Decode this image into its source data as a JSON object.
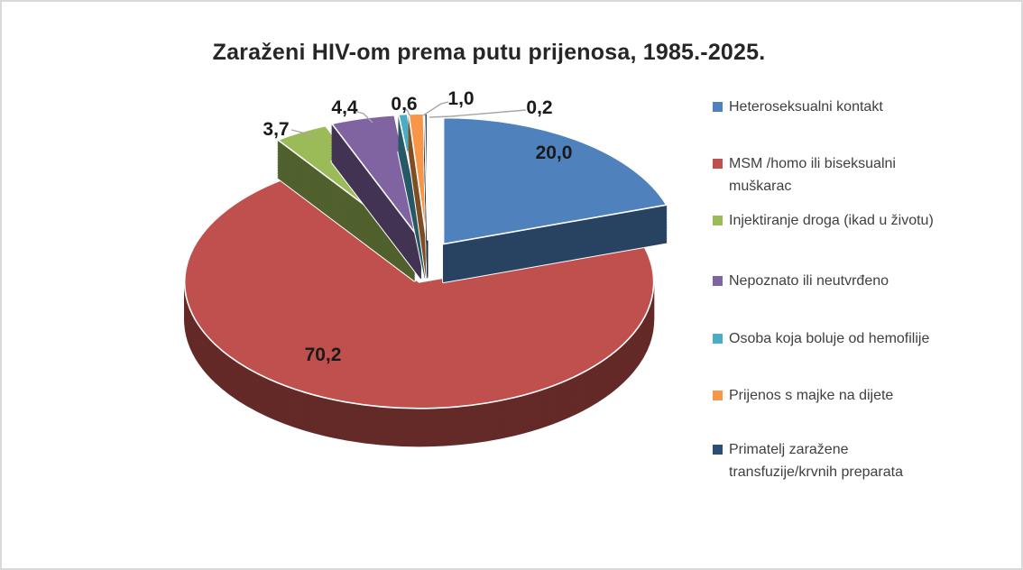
{
  "window": {
    "background": "#FFFFFF",
    "border_color": "#D9D9D9"
  },
  "title": "Zaraženi HIV-om prema putu prijenosa, 1985.-2025.",
  "chart_data": {
    "type": "pie",
    "style": "3d-exploded",
    "title": "Zaraženi HIV-om prema putu prijenosa, 1985.-2025.",
    "unit": "percent",
    "start_angle_deg": 0,
    "direction": "clockwise",
    "legend_position": "right",
    "label_decimal_separator": ",",
    "slices": [
      {
        "label": "Heteroseksualni kontakt",
        "legend_label": "Heteroseksualni kontakt",
        "value": 20.0,
        "value_label": "20,0",
        "color": "#4F81BD"
      },
      {
        "label": "MSM /homo ili biseksualni muškarac",
        "legend_label": "MSM /homo ili biseksualni\nmuškarac",
        "value": 70.2,
        "value_label": "70,2",
        "color": "#C0504D"
      },
      {
        "label": "Injektiranje droga (ikad u životu)",
        "legend_label": "Injektiranje droga (ikad u životu)",
        "value": 3.7,
        "value_label": "3,7",
        "color": "#9BBB59"
      },
      {
        "label": "Nepoznato ili neutvrđeno",
        "legend_label": "Nepoznato ili neutvrđeno",
        "value": 4.4,
        "value_label": "4,4",
        "color": "#8064A2"
      },
      {
        "label": "Osoba koja boluje od hemofilije",
        "legend_label": "Osoba koja boluje od hemofilije",
        "value": 0.6,
        "value_label": "0,6",
        "color": "#4BACC6"
      },
      {
        "label": "Prijenos s majke na dijete",
        "legend_label": "Prijenos s majke na dijete",
        "value": 1.0,
        "value_label": "1,0",
        "color": "#F79646"
      },
      {
        "label": "Primatelj zaražene transfuzije/krvnih preparata",
        "legend_label": "Primatelj zaražene\ntransfuzije/krvnih preparata",
        "value": 0.2,
        "value_label": "0,2",
        "color": "#2C4D75"
      }
    ],
    "data_label_color": "#1A1A1A",
    "leader_line_color": "#A6A6A6"
  }
}
